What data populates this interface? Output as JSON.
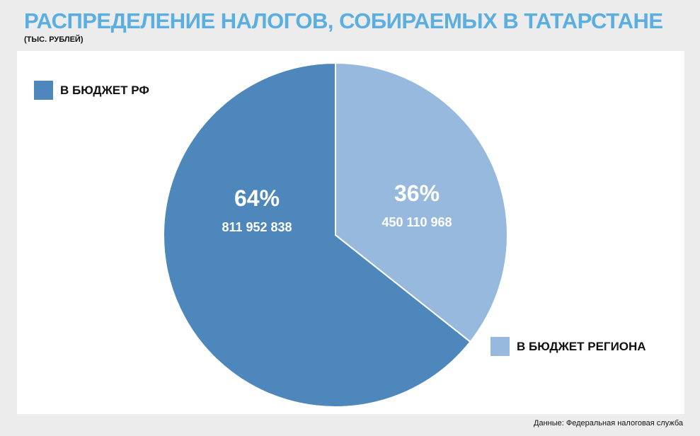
{
  "header": {
    "title": "РАСПРЕДЕЛЕНИЕ НАЛОГОВ, СОБИРАЕМЫХ В ТАТАРСТАНЕ",
    "subtitle": "(ТЫС. РУБЛЕЙ)"
  },
  "footer": {
    "source": "Данные: Федеральная налоговая служба"
  },
  "chart_data": {
    "type": "pie",
    "title": "РАСПРЕДЕЛЕНИЕ НАЛОГОВ, СОБИРАЕМЫХ В ТАТАРСТАНЕ",
    "subtitle": "(ТЫС. РУБЛЕЙ)",
    "slices": [
      {
        "name": "В БЮДЖЕТ РФ",
        "percent_label": "64%",
        "value_label": "811 952 838",
        "value": 811952838,
        "percent": 64,
        "color": "#4e87bc"
      },
      {
        "name": "В БЮДЖЕТ РЕГИОНА",
        "percent_label": "36%",
        "value_label": "450 110 968",
        "value": 450110968,
        "percent": 36,
        "color": "#97b9de"
      }
    ],
    "start": "12 o'clock",
    "direction": "counterclockwise for first slice",
    "legend": {
      "placement": "top-left and bottom-right"
    }
  }
}
